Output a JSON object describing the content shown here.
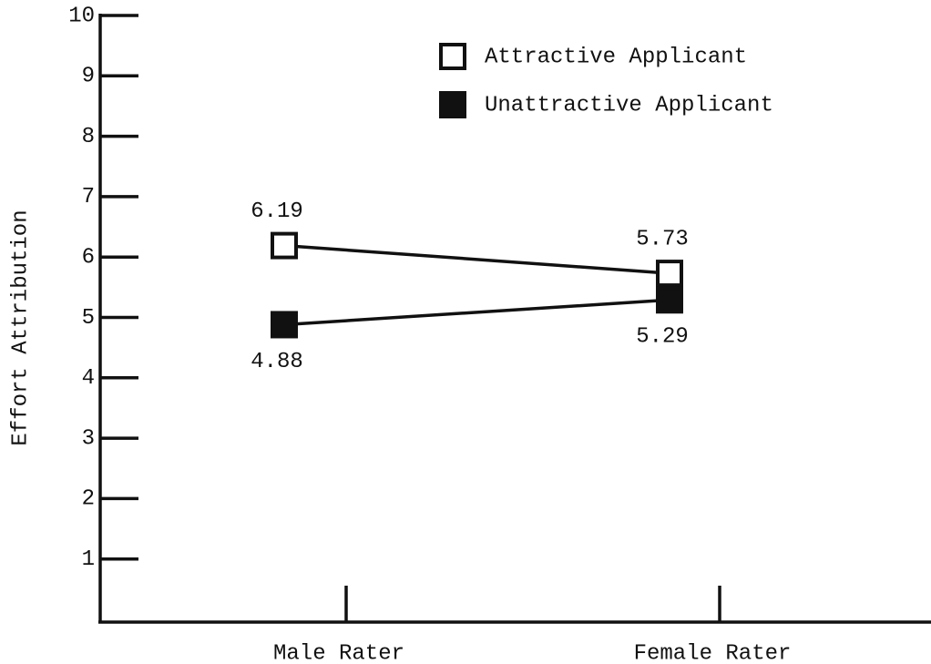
{
  "chart_data": {
    "type": "line",
    "y_label": "Effort Attribution",
    "categories": [
      "Male Rater",
      "Female Rater"
    ],
    "series": [
      {
        "name": "Attractive Applicant",
        "color": "#111111",
        "marker": "open-square",
        "label_position": "above",
        "values": [
          6.19,
          5.73
        ]
      },
      {
        "name": "Unattractive Applicant",
        "color": "#111111",
        "marker": "filled-square",
        "label_position": "below",
        "values": [
          4.88,
          5.29
        ]
      }
    ],
    "ylim": [
      0,
      10
    ],
    "yticks": [
      1,
      2,
      3,
      4,
      5,
      6,
      7,
      8,
      9,
      10
    ],
    "legend": "top-right"
  }
}
